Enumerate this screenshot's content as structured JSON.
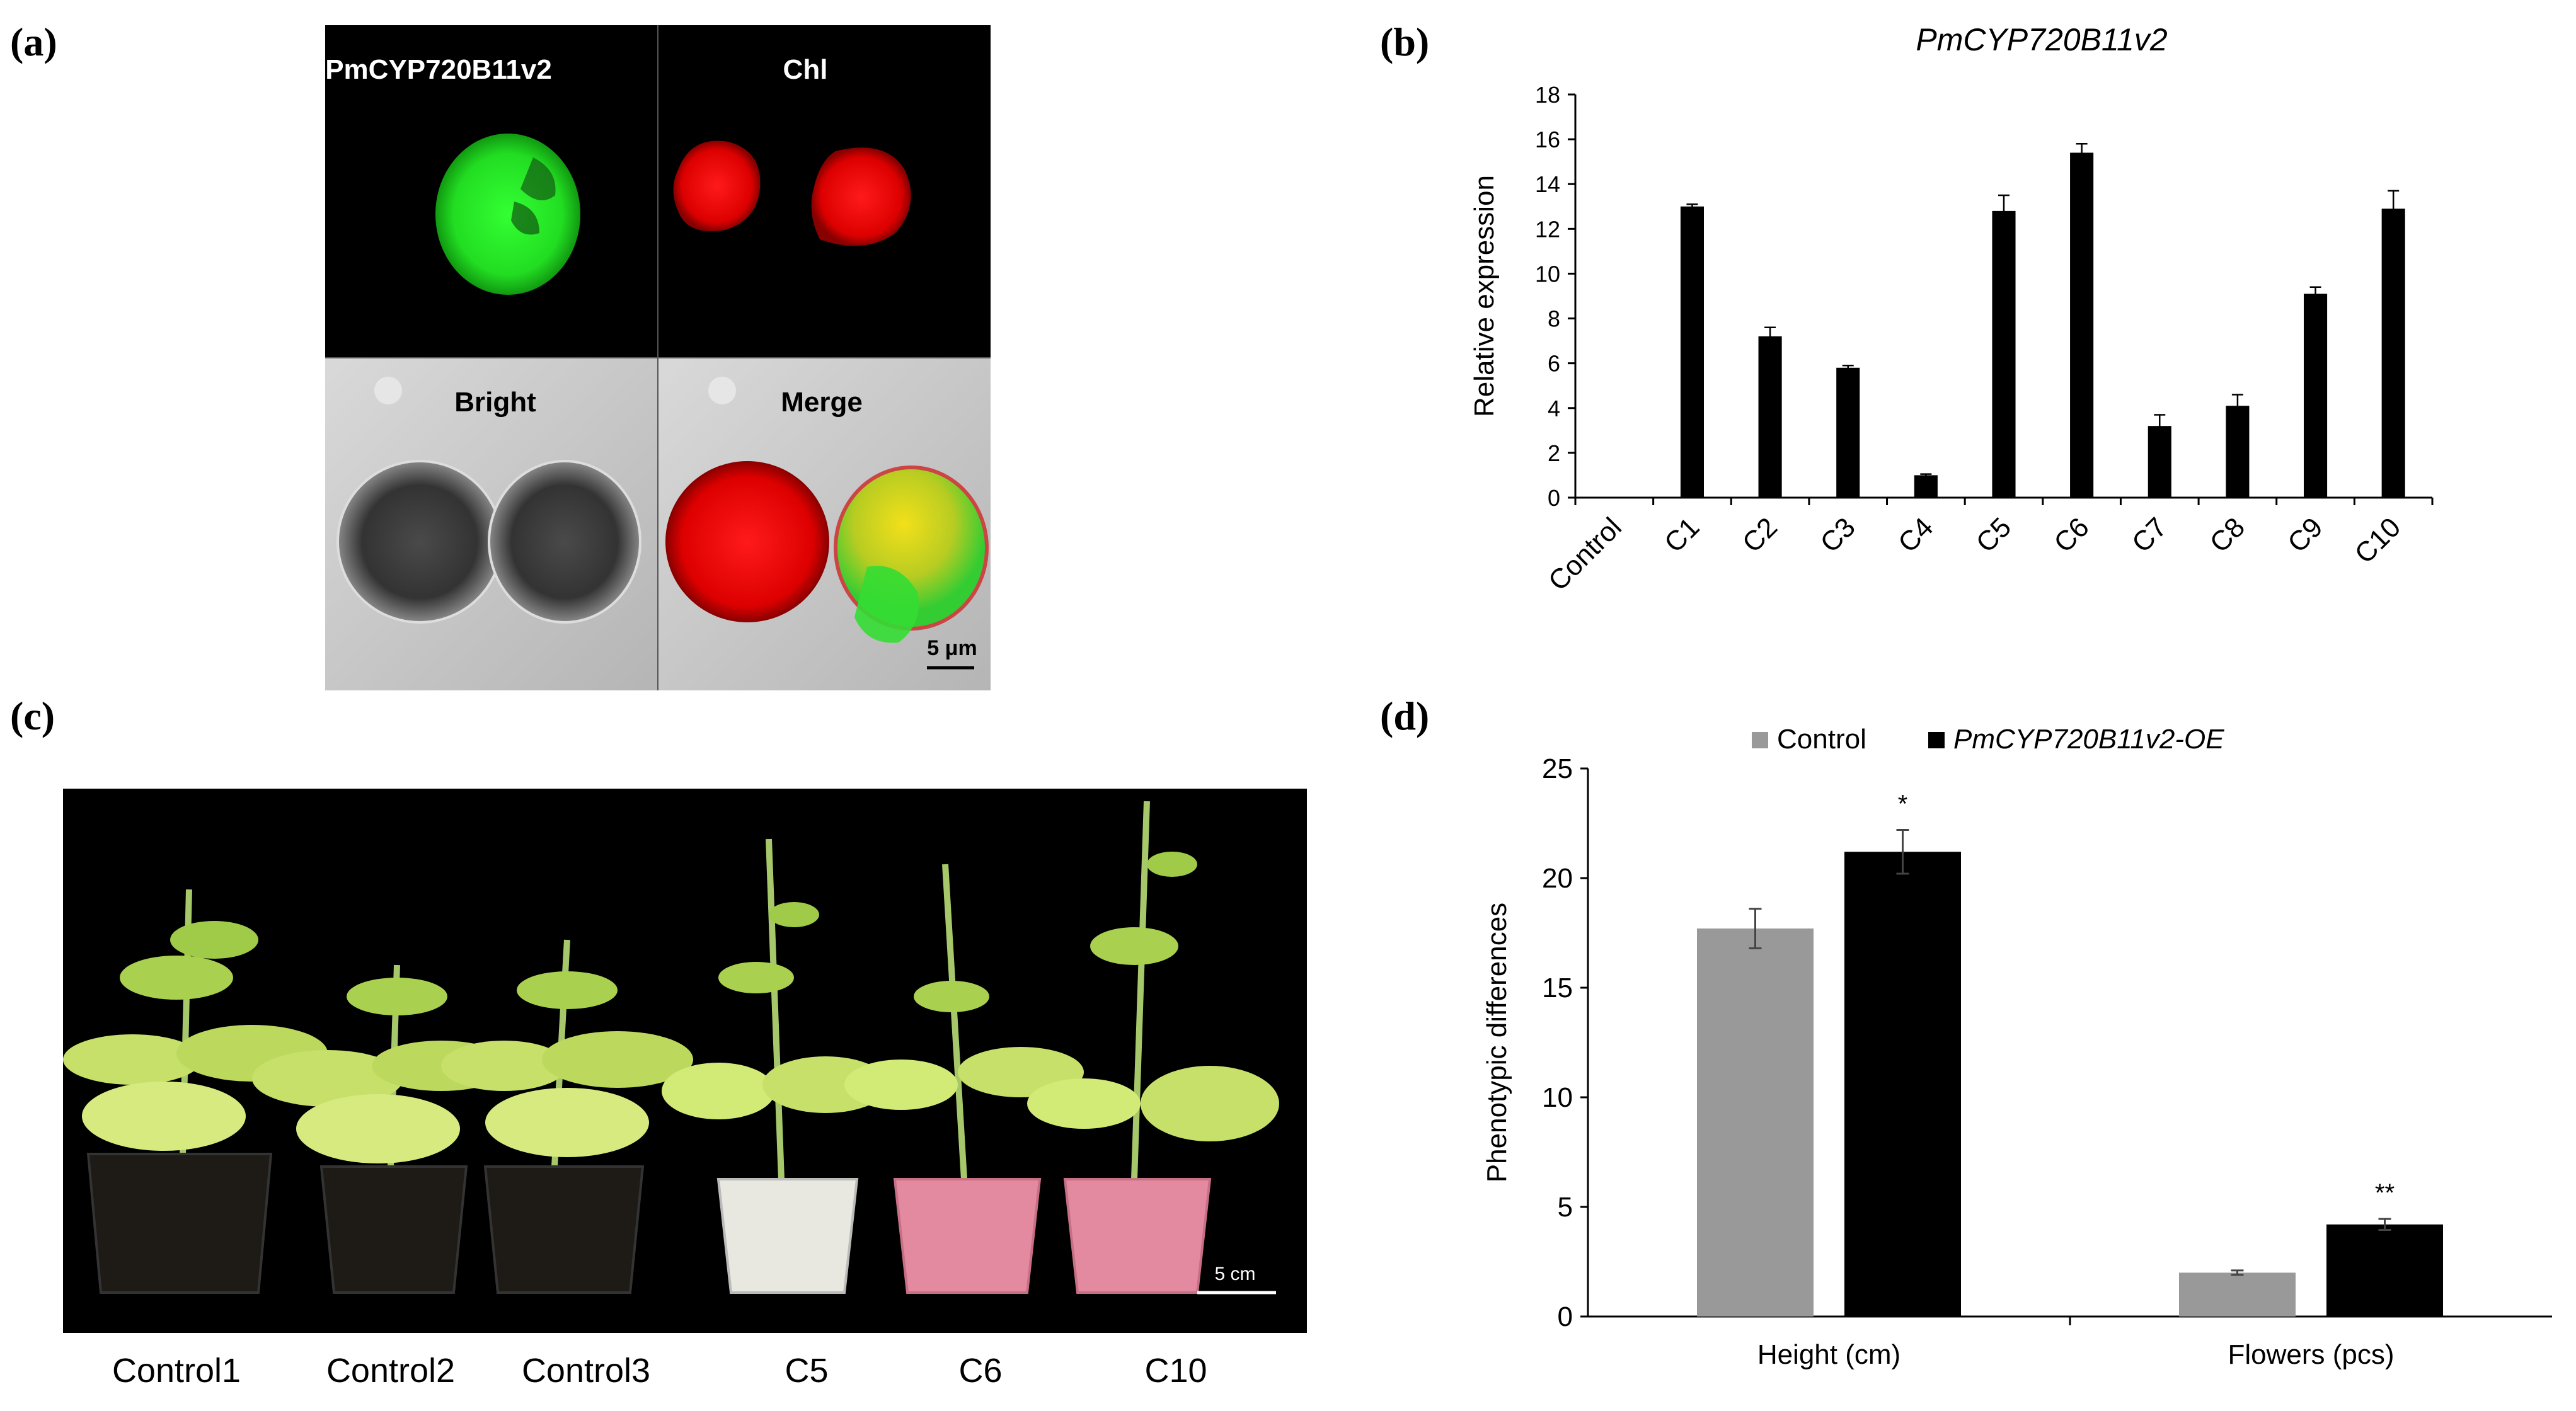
{
  "panels": {
    "a": "(a)",
    "b": "(b)",
    "c": "(c)",
    "d": "(d)"
  },
  "micrograph": {
    "labels": [
      "PmCYP720B11v2",
      "Chl",
      "Bright",
      "Merge"
    ],
    "scale_bar": "5 μm"
  },
  "photo": {
    "scale_bar": "5 cm",
    "plant_labels": [
      "Control1",
      "Control2",
      "Control3",
      "C5",
      "C6",
      "C10"
    ]
  },
  "chart_data": [
    {
      "type": "bar",
      "title": "PmCYP720B11v2",
      "ylabel": "Relative expression",
      "xlabel": "",
      "categories": [
        "Control",
        "C1",
        "C2",
        "C3",
        "C4",
        "C5",
        "C6",
        "C7",
        "C8",
        "C9",
        "C10"
      ],
      "values": [
        0,
        13.0,
        7.2,
        5.8,
        1.0,
        12.8,
        15.4,
        3.2,
        4.1,
        9.1,
        12.9
      ],
      "errors": [
        0,
        0.1,
        0.4,
        0.1,
        0.05,
        0.7,
        0.4,
        0.5,
        0.5,
        0.3,
        0.8
      ],
      "ylim": [
        0,
        18
      ],
      "yticks": [
        0,
        2,
        4,
        6,
        8,
        10,
        12,
        14,
        16,
        18
      ],
      "color": "#000000"
    },
    {
      "type": "bar",
      "ylabel": "Phenotypic differences",
      "xlabel": "",
      "categories": [
        "Height (cm)",
        "Flowers (pcs)"
      ],
      "series": [
        {
          "name": "Control",
          "values": [
            17.7,
            2.0
          ],
          "errors": [
            0.9,
            0.1
          ],
          "color": "#999999"
        },
        {
          "name": "PmCYP720B11v2-OE",
          "values": [
            21.2,
            4.2
          ],
          "errors": [
            1.0,
            0.25
          ],
          "color": "#000000"
        }
      ],
      "significance": [
        "*",
        "**"
      ],
      "ylim": [
        0,
        25
      ],
      "yticks": [
        0,
        5,
        10,
        15,
        20,
        25
      ],
      "legend_position": "top"
    }
  ]
}
